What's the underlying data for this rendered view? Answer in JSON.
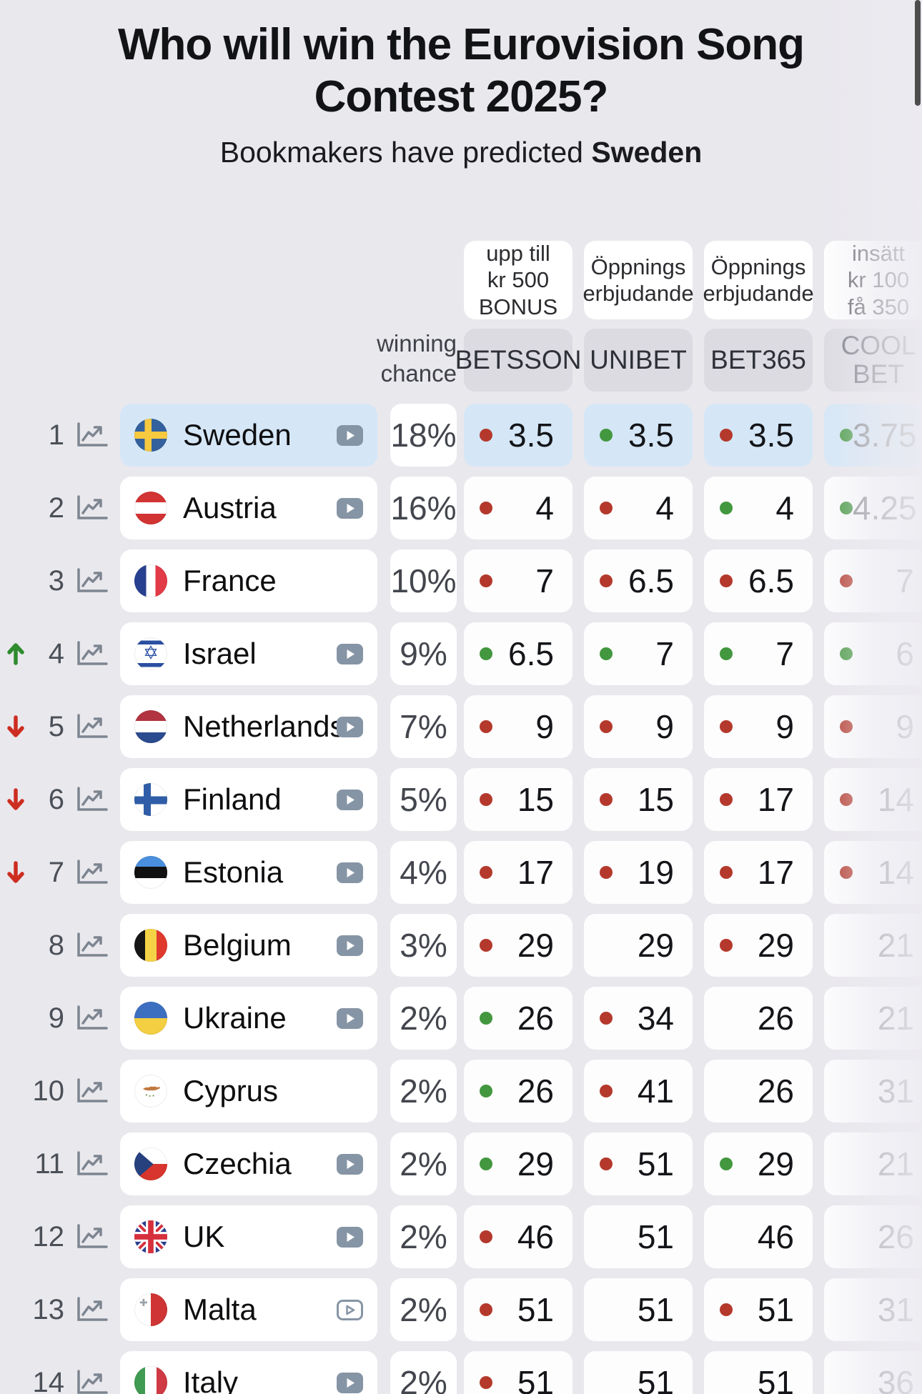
{
  "page": {
    "title": "Who will win the Eurovision Song Contest 2025?",
    "subtitle_prefix": "Bookmakers have predicted ",
    "subtitle_highlight": "Sweden"
  },
  "header": {
    "winning_chance_label": "winning chance",
    "bookmakers": [
      {
        "name": "BETSSON",
        "promo_lines": [
          "upp till",
          "kr 500",
          "BONUS"
        ],
        "faded": false
      },
      {
        "name": "UNIBET",
        "promo_lines": [
          "Öppnings",
          "erbjudande"
        ],
        "faded": false
      },
      {
        "name": "BET365",
        "promo_lines": [
          "Öppnings",
          "erbjudande"
        ],
        "faded": false
      },
      {
        "name": "COOL BET",
        "promo_lines": [
          "insätt",
          "kr 100",
          "få 350"
        ],
        "faded": true
      }
    ]
  },
  "rows": [
    {
      "rank": "1",
      "trend": null,
      "country": "Sweden",
      "flag": "sweden",
      "play": "filled",
      "chance": "18%",
      "highlighted": true,
      "odds": [
        {
          "dot": "red",
          "value": "3.5"
        },
        {
          "dot": "green",
          "value": "3.5"
        },
        {
          "dot": "red",
          "value": "3.5"
        },
        {
          "dot": "green",
          "value": "3.75"
        }
      ]
    },
    {
      "rank": "2",
      "trend": null,
      "country": "Austria",
      "flag": "austria",
      "play": "filled",
      "chance": "16%",
      "highlighted": false,
      "odds": [
        {
          "dot": "red",
          "value": "4"
        },
        {
          "dot": "red",
          "value": "4"
        },
        {
          "dot": "green",
          "value": "4"
        },
        {
          "dot": "green",
          "value": "4.25"
        }
      ]
    },
    {
      "rank": "3",
      "trend": null,
      "country": "France",
      "flag": "france",
      "play": null,
      "chance": "10%",
      "highlighted": false,
      "odds": [
        {
          "dot": "red",
          "value": "7"
        },
        {
          "dot": "red",
          "value": "6.5"
        },
        {
          "dot": "red",
          "value": "6.5"
        },
        {
          "dot": "red",
          "value": "7"
        }
      ]
    },
    {
      "rank": "4",
      "trend": "up",
      "country": "Israel",
      "flag": "israel",
      "play": "filled",
      "chance": "9%",
      "highlighted": false,
      "odds": [
        {
          "dot": "green",
          "value": "6.5"
        },
        {
          "dot": "green",
          "value": "7"
        },
        {
          "dot": "green",
          "value": "7"
        },
        {
          "dot": "green",
          "value": "6"
        }
      ]
    },
    {
      "rank": "5",
      "trend": "down",
      "country": "Netherlands",
      "flag": "netherlands",
      "play": "filled",
      "chance": "7%",
      "highlighted": false,
      "odds": [
        {
          "dot": "red",
          "value": "9"
        },
        {
          "dot": "red",
          "value": "9"
        },
        {
          "dot": "red",
          "value": "9"
        },
        {
          "dot": "red",
          "value": "9"
        }
      ]
    },
    {
      "rank": "6",
      "trend": "down",
      "country": "Finland",
      "flag": "finland",
      "play": "filled",
      "chance": "5%",
      "highlighted": false,
      "odds": [
        {
          "dot": "red",
          "value": "15"
        },
        {
          "dot": "red",
          "value": "15"
        },
        {
          "dot": "red",
          "value": "17"
        },
        {
          "dot": "red",
          "value": "14"
        }
      ]
    },
    {
      "rank": "7",
      "trend": "down",
      "country": "Estonia",
      "flag": "estonia",
      "play": "filled",
      "chance": "4%",
      "highlighted": false,
      "odds": [
        {
          "dot": "red",
          "value": "17"
        },
        {
          "dot": "red",
          "value": "19"
        },
        {
          "dot": "red",
          "value": "17"
        },
        {
          "dot": "red",
          "value": "14"
        }
      ]
    },
    {
      "rank": "8",
      "trend": null,
      "country": "Belgium",
      "flag": "belgium",
      "play": "filled",
      "chance": "3%",
      "highlighted": false,
      "odds": [
        {
          "dot": "red",
          "value": "29"
        },
        {
          "dot": null,
          "value": "29"
        },
        {
          "dot": "red",
          "value": "29"
        },
        {
          "dot": null,
          "value": "21"
        }
      ]
    },
    {
      "rank": "9",
      "trend": null,
      "country": "Ukraine",
      "flag": "ukraine",
      "play": "filled",
      "chance": "2%",
      "highlighted": false,
      "odds": [
        {
          "dot": "green",
          "value": "26"
        },
        {
          "dot": "red",
          "value": "34"
        },
        {
          "dot": null,
          "value": "26"
        },
        {
          "dot": null,
          "value": "21"
        }
      ]
    },
    {
      "rank": "10",
      "trend": null,
      "country": "Cyprus",
      "flag": "cyprus",
      "play": null,
      "chance": "2%",
      "highlighted": false,
      "odds": [
        {
          "dot": "green",
          "value": "26"
        },
        {
          "dot": "red",
          "value": "41"
        },
        {
          "dot": null,
          "value": "26"
        },
        {
          "dot": null,
          "value": "31"
        }
      ]
    },
    {
      "rank": "11",
      "trend": null,
      "country": "Czechia",
      "flag": "czechia",
      "play": "filled",
      "chance": "2%",
      "highlighted": false,
      "odds": [
        {
          "dot": "green",
          "value": "29"
        },
        {
          "dot": "red",
          "value": "51"
        },
        {
          "dot": "green",
          "value": "29"
        },
        {
          "dot": null,
          "value": "21"
        }
      ]
    },
    {
      "rank": "12",
      "trend": null,
      "country": "UK",
      "flag": "uk",
      "play": "filled",
      "chance": "2%",
      "highlighted": false,
      "odds": [
        {
          "dot": "red",
          "value": "46"
        },
        {
          "dot": null,
          "value": "51"
        },
        {
          "dot": null,
          "value": "46"
        },
        {
          "dot": null,
          "value": "26"
        }
      ]
    },
    {
      "rank": "13",
      "trend": null,
      "country": "Malta",
      "flag": "malta",
      "play": "outlined",
      "chance": "2%",
      "highlighted": false,
      "odds": [
        {
          "dot": "red",
          "value": "51"
        },
        {
          "dot": null,
          "value": "51"
        },
        {
          "dot": "red",
          "value": "51"
        },
        {
          "dot": null,
          "value": "31"
        }
      ]
    },
    {
      "rank": "14",
      "trend": null,
      "country": "Italy",
      "flag": "italy",
      "play": "filled",
      "chance": "2%",
      "highlighted": false,
      "odds": [
        {
          "dot": "red",
          "value": "51"
        },
        {
          "dot": null,
          "value": "51"
        },
        {
          "dot": null,
          "value": "51"
        },
        {
          "dot": null,
          "value": "36"
        }
      ]
    }
  ],
  "colors": {
    "background": "#e9e8ed",
    "highlight_row": "#d5e7f7",
    "dot_red": "#b4392c",
    "dot_green": "#43973f",
    "trend_up": "#2e8b2e",
    "trend_down": "#cd2d20",
    "chip_background": "#dcdbe1"
  }
}
